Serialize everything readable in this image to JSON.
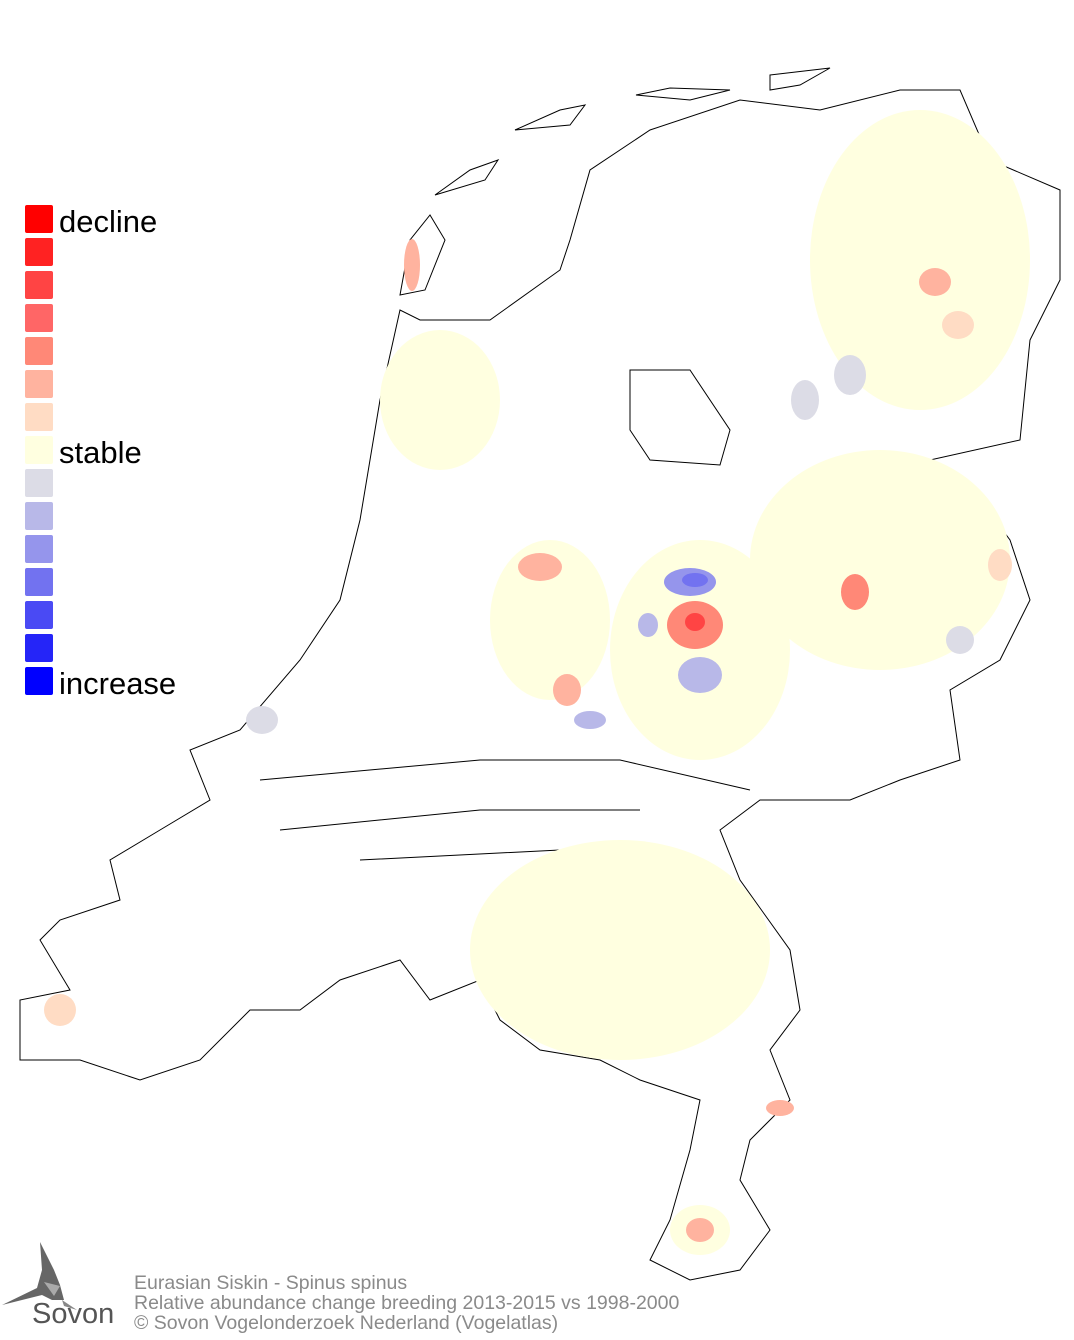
{
  "legend": {
    "labels": {
      "top": "decline",
      "middle": "stable",
      "bottom": "increase"
    },
    "colors": [
      "#ff0000",
      "#ff2222",
      "#ff4444",
      "#ff6666",
      "#ff8877",
      "#ffb39f",
      "#ffdcc4",
      "#ffffe0",
      "#dcdce6",
      "#b8b8e8",
      "#9595ec",
      "#7272f0",
      "#4a4af4",
      "#2525f8",
      "#0000ff"
    ]
  },
  "credits": {
    "species": "Eurasian Siskin - Spinus spinus",
    "description": "Relative abundance change breeding 2013-2015 vs 1998-2000",
    "copyright": "© Sovon Vogelonderzoek Nederland (Vogelatlas)"
  },
  "logo": {
    "text": "Sovon",
    "icon": "swallow-icon"
  }
}
